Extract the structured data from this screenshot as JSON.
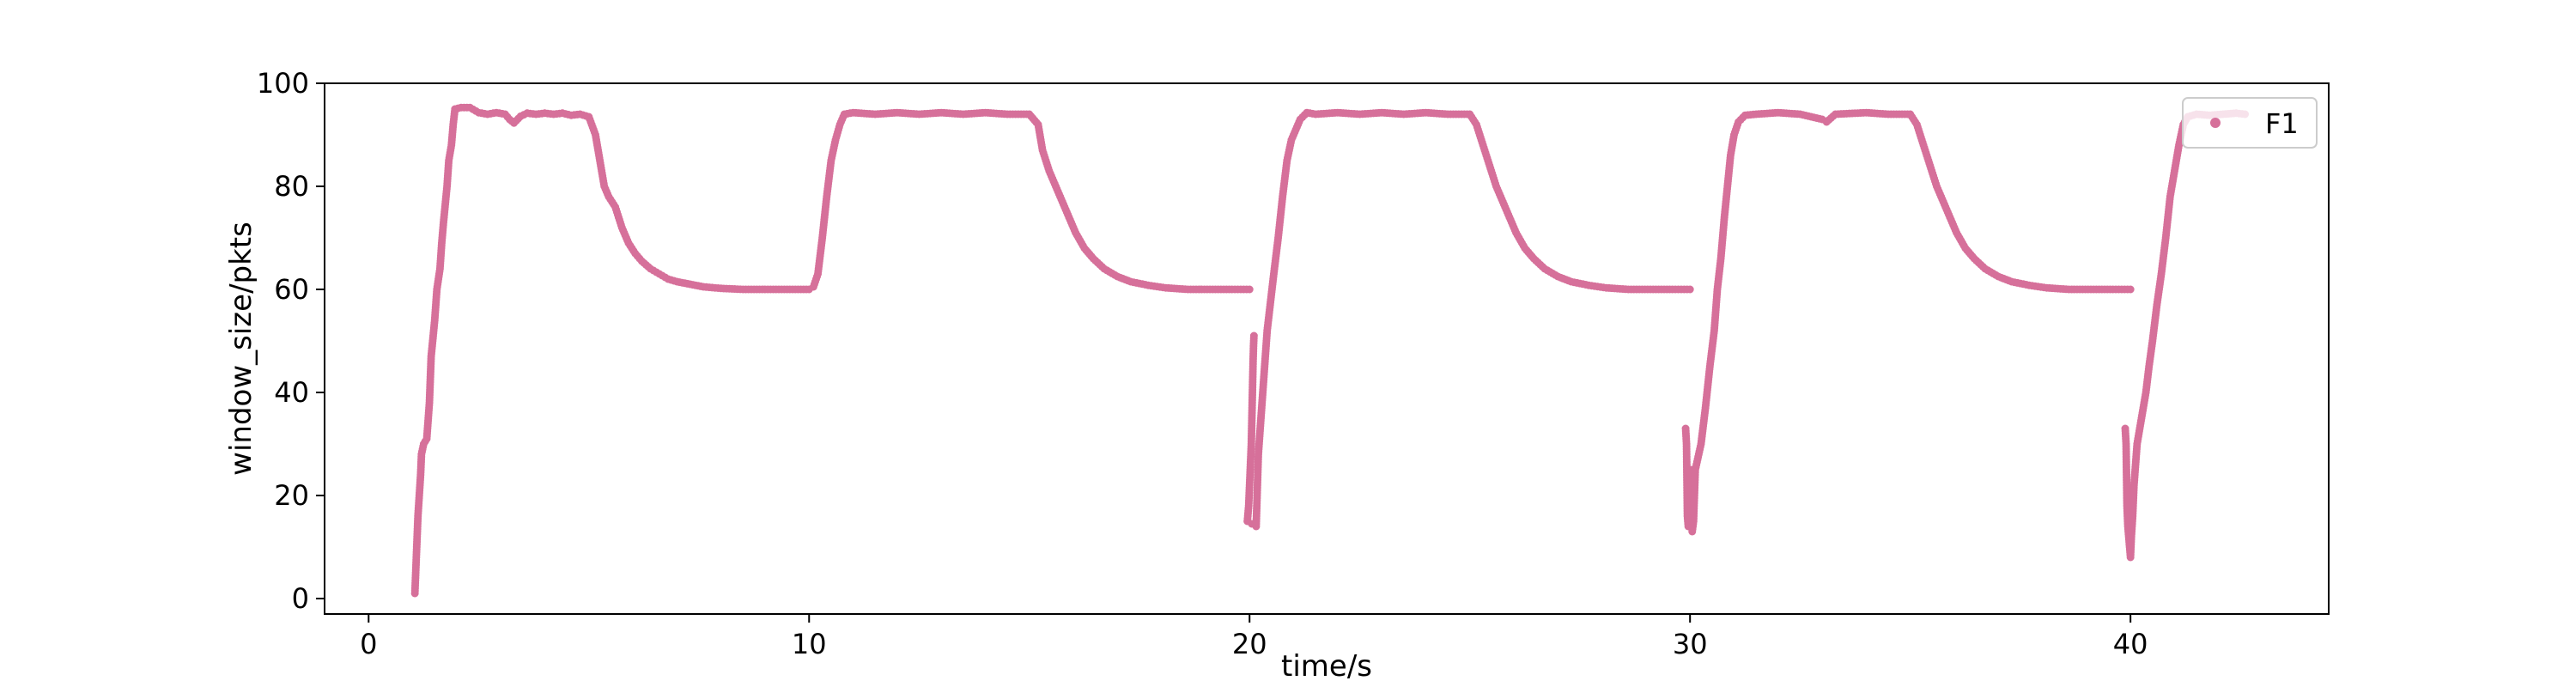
{
  "chart_data": {
    "type": "scatter",
    "title": "",
    "xlabel": "time/s",
    "ylabel": "window_size/pkts",
    "xlim": [
      -1,
      44.5
    ],
    "ylim": [
      -3,
      100
    ],
    "xticks": [
      0,
      10,
      20,
      30,
      40
    ],
    "yticks": [
      0,
      20,
      40,
      60,
      80,
      100
    ],
    "grid": false,
    "legend_position": "top-right",
    "series": [
      {
        "name": "F1",
        "color": "#d6709a",
        "points": [
          [
            1.05,
            1
          ],
          [
            1.12,
            16
          ],
          [
            1.15,
            20
          ],
          [
            1.18,
            24
          ],
          [
            1.2,
            28
          ],
          [
            1.25,
            30
          ],
          [
            1.32,
            31
          ],
          [
            1.38,
            38
          ],
          [
            1.42,
            47
          ],
          [
            1.5,
            54
          ],
          [
            1.55,
            60
          ],
          [
            1.62,
            64
          ],
          [
            1.66,
            69
          ],
          [
            1.7,
            73
          ],
          [
            1.78,
            80
          ],
          [
            1.82,
            85
          ],
          [
            1.88,
            88
          ],
          [
            1.92,
            92
          ],
          [
            1.96,
            95
          ],
          [
            2.1,
            95.3
          ],
          [
            2.3,
            95.3
          ],
          [
            2.5,
            94.3
          ],
          [
            2.7,
            94
          ],
          [
            2.9,
            94.3
          ],
          [
            3.1,
            94
          ],
          [
            3.2,
            93
          ],
          [
            3.3,
            92.3
          ],
          [
            3.45,
            93.6
          ],
          [
            3.6,
            94.2
          ],
          [
            3.8,
            94
          ],
          [
            4.0,
            94.2
          ],
          [
            4.2,
            94
          ],
          [
            4.4,
            94.2
          ],
          [
            4.6,
            93.8
          ],
          [
            4.8,
            94
          ],
          [
            5.0,
            93.5
          ],
          [
            5.15,
            90
          ],
          [
            5.25,
            85
          ],
          [
            5.35,
            80
          ],
          [
            5.45,
            78
          ],
          [
            5.6,
            76
          ],
          [
            5.75,
            72
          ],
          [
            5.9,
            69
          ],
          [
            6.05,
            67
          ],
          [
            6.2,
            65.5
          ],
          [
            6.4,
            64
          ],
          [
            6.6,
            63
          ],
          [
            6.8,
            62
          ],
          [
            7.0,
            61.5
          ],
          [
            7.3,
            61
          ],
          [
            7.6,
            60.5
          ],
          [
            8.0,
            60.2
          ],
          [
            8.5,
            60
          ],
          [
            9.0,
            60
          ],
          [
            9.5,
            60
          ],
          [
            10.0,
            60
          ],
          [
            10.1,
            60.5
          ],
          [
            10.2,
            63
          ],
          [
            10.3,
            70
          ],
          [
            10.4,
            78
          ],
          [
            10.5,
            85
          ],
          [
            10.6,
            89
          ],
          [
            10.7,
            92
          ],
          [
            10.8,
            94
          ],
          [
            11.0,
            94.3
          ],
          [
            11.5,
            94
          ],
          [
            12.0,
            94.3
          ],
          [
            12.5,
            94
          ],
          [
            13.0,
            94.3
          ],
          [
            13.5,
            94
          ],
          [
            14.0,
            94.3
          ],
          [
            14.5,
            94
          ],
          [
            15.0,
            94
          ],
          [
            15.2,
            92
          ],
          [
            15.3,
            87
          ],
          [
            15.45,
            83
          ],
          [
            15.6,
            80
          ],
          [
            15.75,
            77
          ],
          [
            15.9,
            74
          ],
          [
            16.05,
            71
          ],
          [
            16.25,
            68
          ],
          [
            16.45,
            66
          ],
          [
            16.7,
            64
          ],
          [
            17.0,
            62.5
          ],
          [
            17.3,
            61.5
          ],
          [
            17.7,
            60.8
          ],
          [
            18.1,
            60.3
          ],
          [
            18.6,
            60
          ],
          [
            19.1,
            60
          ],
          [
            19.6,
            60
          ],
          [
            20.0,
            60
          ],
          [
            19.95,
            15
          ],
          [
            19.98,
            18
          ],
          [
            20.0,
            22
          ],
          [
            20.02,
            26
          ],
          [
            20.04,
            30
          ],
          [
            20.05,
            34
          ],
          [
            20.06,
            38
          ],
          [
            20.07,
            42
          ],
          [
            20.08,
            46
          ],
          [
            20.09,
            49
          ],
          [
            20.1,
            51
          ],
          [
            20.05,
            14.5
          ],
          [
            20.15,
            14
          ],
          [
            20.2,
            28
          ],
          [
            20.3,
            40
          ],
          [
            20.4,
            52
          ],
          [
            20.55,
            63
          ],
          [
            20.65,
            70
          ],
          [
            20.75,
            78
          ],
          [
            20.85,
            85
          ],
          [
            20.95,
            89
          ],
          [
            21.05,
            91
          ],
          [
            21.15,
            93
          ],
          [
            21.3,
            94.3
          ],
          [
            21.5,
            94
          ],
          [
            22.0,
            94.3
          ],
          [
            22.5,
            94
          ],
          [
            23.0,
            94.3
          ],
          [
            23.5,
            94
          ],
          [
            24.0,
            94.3
          ],
          [
            24.5,
            94
          ],
          [
            25.0,
            94
          ],
          [
            25.15,
            92
          ],
          [
            25.3,
            88
          ],
          [
            25.45,
            84
          ],
          [
            25.6,
            80
          ],
          [
            25.75,
            77
          ],
          [
            25.9,
            74
          ],
          [
            26.05,
            71
          ],
          [
            26.25,
            68
          ],
          [
            26.45,
            66
          ],
          [
            26.7,
            64
          ],
          [
            27.0,
            62.5
          ],
          [
            27.3,
            61.5
          ],
          [
            27.7,
            60.8
          ],
          [
            28.1,
            60.3
          ],
          [
            28.6,
            60
          ],
          [
            29.1,
            60
          ],
          [
            29.6,
            60
          ],
          [
            30.0,
            60
          ],
          [
            29.9,
            33
          ],
          [
            29.92,
            30
          ],
          [
            29.94,
            16
          ],
          [
            29.96,
            14
          ],
          [
            29.98,
            18
          ],
          [
            30.0,
            22
          ],
          [
            30.02,
            25
          ],
          [
            30.05,
            13
          ],
          [
            30.08,
            15
          ],
          [
            30.1,
            20
          ],
          [
            30.12,
            25
          ],
          [
            30.25,
            30
          ],
          [
            30.35,
            37
          ],
          [
            30.45,
            45
          ],
          [
            30.55,
            52
          ],
          [
            30.62,
            60
          ],
          [
            30.7,
            66
          ],
          [
            30.78,
            74
          ],
          [
            30.85,
            80
          ],
          [
            30.92,
            86
          ],
          [
            31.0,
            90
          ],
          [
            31.1,
            92.5
          ],
          [
            31.25,
            93.8
          ],
          [
            31.5,
            94
          ],
          [
            32.0,
            94.3
          ],
          [
            32.5,
            94
          ],
          [
            33.0,
            93
          ],
          [
            33.1,
            92.5
          ],
          [
            33.3,
            94
          ],
          [
            34.0,
            94.3
          ],
          [
            34.5,
            94
          ],
          [
            35.0,
            94
          ],
          [
            35.15,
            92
          ],
          [
            35.3,
            88
          ],
          [
            35.45,
            84
          ],
          [
            35.6,
            80
          ],
          [
            35.75,
            77
          ],
          [
            35.9,
            74
          ],
          [
            36.05,
            71
          ],
          [
            36.25,
            68
          ],
          [
            36.45,
            66
          ],
          [
            36.7,
            64
          ],
          [
            37.0,
            62.5
          ],
          [
            37.3,
            61.5
          ],
          [
            37.7,
            60.8
          ],
          [
            38.1,
            60.3
          ],
          [
            38.6,
            60
          ],
          [
            39.1,
            60
          ],
          [
            39.6,
            60
          ],
          [
            40.0,
            60
          ],
          [
            39.88,
            33
          ],
          [
            39.9,
            30
          ],
          [
            39.92,
            18
          ],
          [
            39.94,
            14
          ],
          [
            39.96,
            12
          ],
          [
            39.98,
            10
          ],
          [
            40.0,
            8
          ],
          [
            40.02,
            12
          ],
          [
            40.05,
            16
          ],
          [
            40.08,
            22
          ],
          [
            40.15,
            30
          ],
          [
            40.25,
            35
          ],
          [
            40.35,
            40
          ],
          [
            40.42,
            45
          ],
          [
            40.5,
            50
          ],
          [
            40.6,
            57
          ],
          [
            40.7,
            63
          ],
          [
            40.8,
            70
          ],
          [
            40.9,
            78
          ],
          [
            41.0,
            83
          ],
          [
            41.1,
            88
          ],
          [
            41.2,
            92
          ],
          [
            41.3,
            93.5
          ],
          [
            41.5,
            94
          ],
          [
            41.8,
            93.8
          ],
          [
            42.1,
            94
          ],
          [
            42.4,
            94.2
          ],
          [
            42.6,
            94
          ]
        ]
      }
    ]
  }
}
